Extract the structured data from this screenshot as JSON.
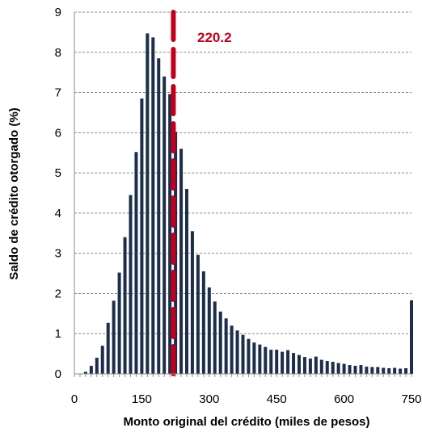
{
  "chart_data": {
    "type": "bar",
    "title": "",
    "xlabel": "Monto original del crédito (miles de pesos)",
    "ylabel": "Saldo de crédito otorgado (%)",
    "xlim": [
      0,
      750
    ],
    "ylim": [
      0,
      9
    ],
    "x_ticks": [
      "0",
      "150",
      "300",
      "450",
      "600",
      "750"
    ],
    "y_ticks": [
      "0",
      "1",
      "2",
      "3",
      "4",
      "5",
      "6",
      "7",
      "8",
      "9"
    ],
    "grid": "horizontal-dashed",
    "bar_color": "#1c2e4a",
    "series": [
      {
        "x": [
          25,
          37.5,
          50,
          62.5,
          75,
          87.5,
          100,
          112.5,
          125,
          137.5,
          150,
          162.5,
          175,
          187.5,
          200,
          212.5,
          225,
          237.5,
          250,
          262.5,
          275,
          287.5,
          300,
          312.5,
          325,
          337.5,
          350,
          362.5,
          375,
          387.5,
          400,
          412.5,
          425,
          437.5,
          450,
          462.5,
          475,
          487.5,
          500,
          512.5,
          525,
          537.5,
          550,
          562.5,
          575,
          587.5,
          600,
          612.5,
          625,
          637.5,
          650,
          662.5,
          675,
          687.5,
          700,
          712.5,
          725,
          737.5,
          750
        ],
        "values": [
          0.05,
          0.2,
          0.4,
          0.7,
          1.27,
          1.82,
          2.52,
          3.4,
          4.45,
          5.52,
          6.85,
          8.47,
          8.37,
          7.85,
          7.4,
          6.96,
          6.02,
          5.6,
          4.6,
          3.55,
          2.96,
          2.55,
          2.15,
          1.8,
          1.55,
          1.38,
          1.2,
          1.08,
          0.97,
          0.87,
          0.78,
          0.73,
          0.67,
          0.6,
          0.6,
          0.55,
          0.59,
          0.52,
          0.47,
          0.42,
          0.38,
          0.43,
          0.35,
          0.32,
          0.3,
          0.27,
          0.25,
          0.22,
          0.2,
          0.22,
          0.18,
          0.17,
          0.17,
          0.15,
          0.14,
          0.15,
          0.13,
          0.14,
          1.83
        ]
      }
    ],
    "reference_line": {
      "x": 220.2,
      "label": "220.2",
      "color": "#c0001e",
      "style": "dashed"
    }
  }
}
